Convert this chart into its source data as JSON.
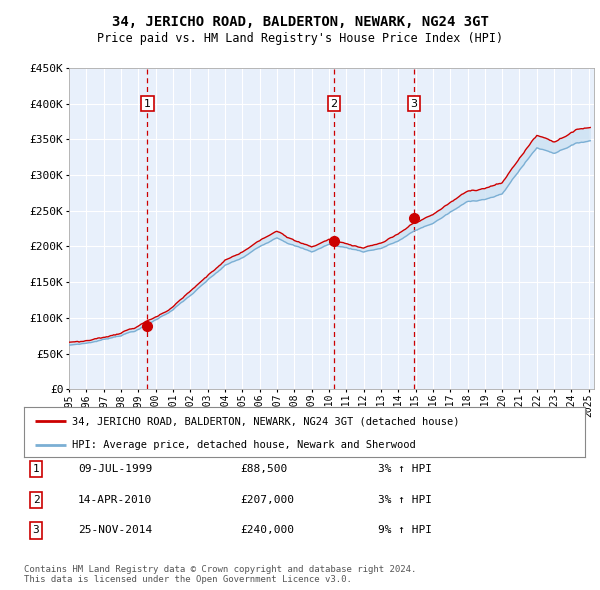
{
  "title": "34, JERICHO ROAD, BALDERTON, NEWARK, NG24 3GT",
  "subtitle": "Price paid vs. HM Land Registry's House Price Index (HPI)",
  "ytick_values": [
    0,
    50000,
    100000,
    150000,
    200000,
    250000,
    300000,
    350000,
    400000,
    450000
  ],
  "ylim": [
    0,
    450000
  ],
  "sale_prices": [
    88500,
    207000,
    240000
  ],
  "sale_years": [
    1999.53,
    2010.29,
    2014.9
  ],
  "sale_labels": [
    "1",
    "2",
    "3"
  ],
  "legend_property": "34, JERICHO ROAD, BALDERTON, NEWARK, NG24 3GT (detached house)",
  "legend_hpi": "HPI: Average price, detached house, Newark and Sherwood",
  "footer": "Contains HM Land Registry data © Crown copyright and database right 2024.\nThis data is licensed under the Open Government Licence v3.0.",
  "property_line_color": "#cc0000",
  "hpi_line_color": "#7bafd4",
  "hpi_fill_color": "#c8dff2",
  "background_color": "#e8f0fb",
  "grid_color": "#ffffff",
  "vline_color": "#cc0000",
  "box_color": "#cc0000",
  "xtick_years": [
    1995,
    1996,
    1997,
    1998,
    1999,
    2000,
    2001,
    2002,
    2003,
    2004,
    2005,
    2006,
    2007,
    2008,
    2009,
    2010,
    2011,
    2012,
    2013,
    2014,
    2015,
    2016,
    2017,
    2018,
    2019,
    2020,
    2021,
    2022,
    2023,
    2024,
    2025
  ],
  "hpi_key_years": [
    1995,
    1996,
    1997,
    1998,
    1999,
    2000,
    2001,
    2002,
    2003,
    2004,
    2005,
    2006,
    2007,
    2008,
    2009,
    2010,
    2011,
    2012,
    2013,
    2014,
    2015,
    2016,
    2017,
    2018,
    2019,
    2020,
    2021,
    2022,
    2023,
    2024,
    2025
  ],
  "hpi_key_vals": [
    62000,
    65000,
    70000,
    77000,
    85000,
    98000,
    113000,
    132000,
    152000,
    172000,
    182000,
    197000,
    212000,
    202000,
    192000,
    203000,
    198000,
    193000,
    198000,
    208000,
    222000,
    232000,
    247000,
    261000,
    266000,
    272000,
    306000,
    337000,
    330000,
    342000,
    348000
  ],
  "prop_offset_vals": [
    4000,
    4000,
    4500,
    5000,
    5500,
    6000,
    7000,
    8000,
    9000,
    10000,
    10500,
    11000,
    12000,
    11500,
    10500,
    11000,
    10500,
    10000,
    10500,
    11000,
    12000,
    12500,
    13000,
    14000,
    14500,
    14000,
    16000,
    18000,
    17000,
    18000,
    18500
  ],
  "rows": [
    [
      "1",
      "09-JUL-1999",
      "£88,500",
      "3% ↑ HPI"
    ],
    [
      "2",
      "14-APR-2010",
      "£207,000",
      "3% ↑ HPI"
    ],
    [
      "3",
      "25-NOV-2014",
      "£240,000",
      "9% ↑ HPI"
    ]
  ]
}
